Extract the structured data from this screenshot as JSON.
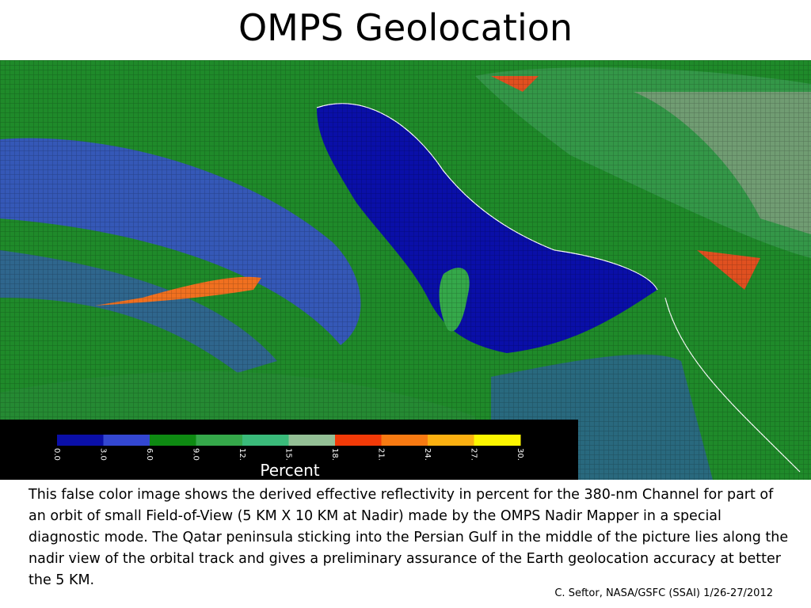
{
  "title": "OMPS Geolocation",
  "colorbar": {
    "colors": [
      "#0a0fa8",
      "#3347d1",
      "#0e8a12",
      "#35a84a",
      "#3aba7a",
      "#93bf95",
      "#f23a08",
      "#f77a12",
      "#fbb011",
      "#fcf500"
    ],
    "ticks": [
      "0.0",
      "3.0",
      "6.0",
      "9.0",
      "12.",
      "15.",
      "18.",
      "21.",
      "24.",
      "27.",
      "30."
    ],
    "label": "Percent"
  },
  "caption": "This false color image shows the derived effective reflectivity in percent for the 380-nm Channel for part of an orbit of small Field-of-View (5 KM X 10 KM at Nadir) made by the OMPS Nadir Mapper in a special diagnostic mode. The Qatar peninsula sticking into the Persian Gulf in the middle of the picture lies along the nadir view of the orbital track and gives a preliminary assurance of the Earth geolocation accuracy at better the 5 KM.",
  "credit": "C. Seftor, NASA/GSFC (SSAI) 1/26-27/2012"
}
